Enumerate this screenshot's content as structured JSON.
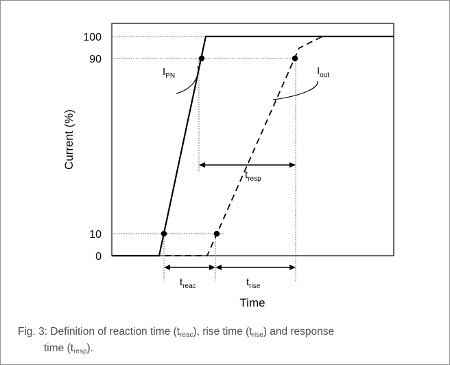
{
  "axes": {
    "ylabel": "Current (%)",
    "xlabel": "Time",
    "yticks": [
      "100",
      "90",
      "10",
      "0"
    ]
  },
  "curves": {
    "input_main": "I",
    "input_sub": "PN",
    "output_main": "I",
    "output_sub": "out"
  },
  "intervals": {
    "resp_main": "t",
    "resp_sub": "resp",
    "reac_main": "t",
    "reac_sub": "reac",
    "rise_main": "t",
    "rise_sub": "rise"
  },
  "caption": {
    "line1_a": "Fig. 3: Definition of reaction time (t",
    "line1_sub1": "reac",
    "line1_b": "), rise time (t",
    "line1_sub2": "rise",
    "line1_c": ") and response",
    "line2_a": "time (t",
    "line2_sub": "resp",
    "line2_b": ")."
  }
}
